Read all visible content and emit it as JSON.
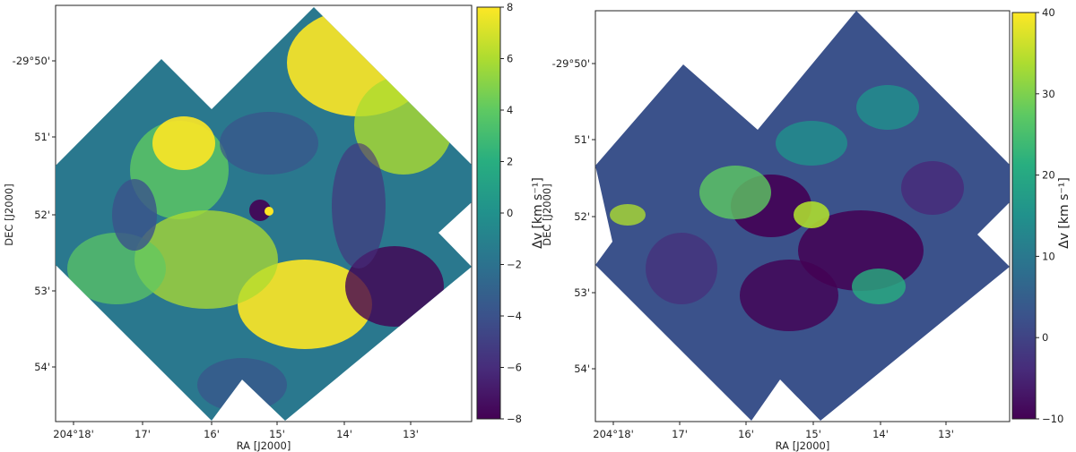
{
  "chart_data": [
    {
      "type": "heatmap",
      "title": "",
      "xlabel": "RA [J2000]",
      "ylabel": "DEC [J2000]",
      "x_tick_labels": [
        "204°18'",
        "17'",
        "16'",
        "15'",
        "14'",
        "13'"
      ],
      "y_tick_labels": [
        "-29°50'",
        "51'",
        "52'",
        "53'",
        "54'"
      ],
      "colormap": "viridis",
      "colorbar": {
        "label": "Δv [km s⁻¹]",
        "range": [
          -8,
          8
        ],
        "tick_labels": [
          "8",
          "6",
          "4",
          "2",
          "0",
          "−2",
          "−4",
          "−6",
          "−8"
        ]
      },
      "grid": false
    },
    {
      "type": "heatmap",
      "title": "",
      "xlabel": "RA [J2000]",
      "ylabel": "DEC [J2000]",
      "x_tick_labels": [
        "204°18'",
        "17'",
        "16'",
        "15'",
        "14'",
        "13'"
      ],
      "y_tick_labels": [
        "-29°50'",
        "51'",
        "52'",
        "53'",
        "54'"
      ],
      "colormap": "viridis",
      "colorbar": {
        "label": "Δv [km s⁻¹]",
        "range": [
          -10,
          40
        ],
        "tick_labels": [
          "40",
          "30",
          "20",
          "10",
          "0",
          "−10"
        ]
      },
      "grid": false
    }
  ]
}
